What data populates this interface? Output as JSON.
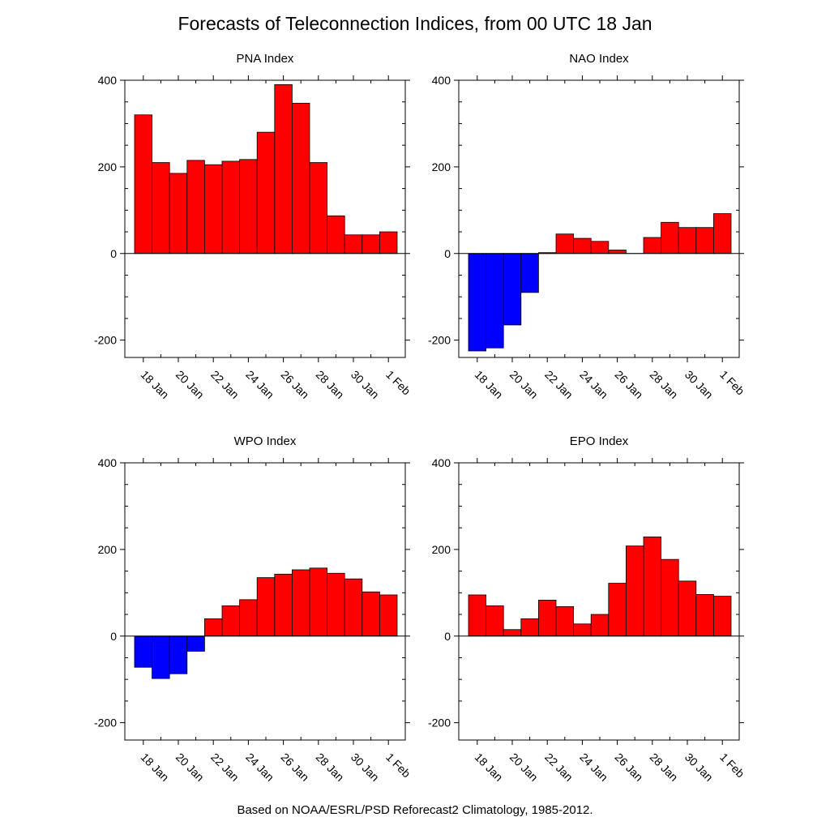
{
  "title": "Forecasts of Teleconnection Indices, from 00 UTC 18 Jan",
  "footnote": "Based on NOAA/ESRL/PSD Reforecast2 Climatology, 1985-2012.",
  "colors": {
    "positive": "#ff0000",
    "negative": "#0000ff",
    "outline": "#000000"
  },
  "chart_data": [
    {
      "type": "bar",
      "title": "PNA Index",
      "ylim": [
        -240,
        400
      ],
      "yticks": [
        400,
        200,
        0,
        -200
      ],
      "ytick_labels": [
        "400",
        "200",
        "0",
        "-200"
      ],
      "xtick_labels": [
        "18 Jan",
        "20 Jan",
        "22 Jan",
        "24 Jan",
        "26 Jan",
        "28 Jan",
        "30 Jan",
        "1 Feb"
      ],
      "categories": [
        "18 Jan",
        "19 Jan",
        "20 Jan",
        "21 Jan",
        "22 Jan",
        "23 Jan",
        "24 Jan",
        "25 Jan",
        "26 Jan",
        "27 Jan",
        "28 Jan",
        "29 Jan",
        "30 Jan",
        "31 Jan",
        "1 Feb"
      ],
      "values": [
        320,
        210,
        185,
        215,
        205,
        213,
        217,
        280,
        390,
        347,
        210,
        87,
        43,
        43,
        50
      ]
    },
    {
      "type": "bar",
      "title": "NAO Index",
      "ylim": [
        -240,
        400
      ],
      "yticks": [
        400,
        200,
        0,
        -200
      ],
      "ytick_labels": [
        "400",
        "200",
        "0",
        "-200"
      ],
      "xtick_labels": [
        "18 Jan",
        "20 Jan",
        "22 Jan",
        "24 Jan",
        "26 Jan",
        "28 Jan",
        "30 Jan",
        "1 Feb"
      ],
      "categories": [
        "18 Jan",
        "19 Jan",
        "20 Jan",
        "21 Jan",
        "22 Jan",
        "23 Jan",
        "24 Jan",
        "25 Jan",
        "26 Jan",
        "27 Jan",
        "28 Jan",
        "29 Jan",
        "30 Jan",
        "31 Jan",
        "1 Feb"
      ],
      "values": [
        -225,
        -218,
        -165,
        -90,
        2,
        45,
        35,
        28,
        8,
        0,
        37,
        72,
        60,
        60,
        92
      ]
    },
    {
      "type": "bar",
      "title": "WPO Index",
      "ylim": [
        -240,
        400
      ],
      "yticks": [
        400,
        200,
        0,
        -200
      ],
      "ytick_labels": [
        "400",
        "200",
        "0",
        "-200"
      ],
      "xtick_labels": [
        "18 Jan",
        "20 Jan",
        "22 Jan",
        "24 Jan",
        "26 Jan",
        "28 Jan",
        "30 Jan",
        "1 Feb"
      ],
      "categories": [
        "18 Jan",
        "19 Jan",
        "20 Jan",
        "21 Jan",
        "22 Jan",
        "23 Jan",
        "24 Jan",
        "25 Jan",
        "26 Jan",
        "27 Jan",
        "28 Jan",
        "29 Jan",
        "30 Jan",
        "31 Jan",
        "1 Feb"
      ],
      "values": [
        -72,
        -98,
        -87,
        -35,
        40,
        70,
        84,
        135,
        143,
        153,
        157,
        145,
        132,
        102,
        95
      ]
    },
    {
      "type": "bar",
      "title": "EPO Index",
      "ylim": [
        -240,
        400
      ],
      "yticks": [
        400,
        200,
        0,
        -200
      ],
      "ytick_labels": [
        "400",
        "200",
        "0",
        "-200"
      ],
      "xtick_labels": [
        "18 Jan",
        "20 Jan",
        "22 Jan",
        "24 Jan",
        "26 Jan",
        "28 Jan",
        "30 Jan",
        "1 Feb"
      ],
      "categories": [
        "18 Jan",
        "19 Jan",
        "20 Jan",
        "21 Jan",
        "22 Jan",
        "23 Jan",
        "24 Jan",
        "25 Jan",
        "26 Jan",
        "27 Jan",
        "28 Jan",
        "29 Jan",
        "30 Jan",
        "31 Jan",
        "1 Feb"
      ],
      "values": [
        95,
        70,
        15,
        40,
        83,
        68,
        28,
        50,
        122,
        208,
        229,
        177,
        127,
        96,
        92
      ]
    }
  ]
}
